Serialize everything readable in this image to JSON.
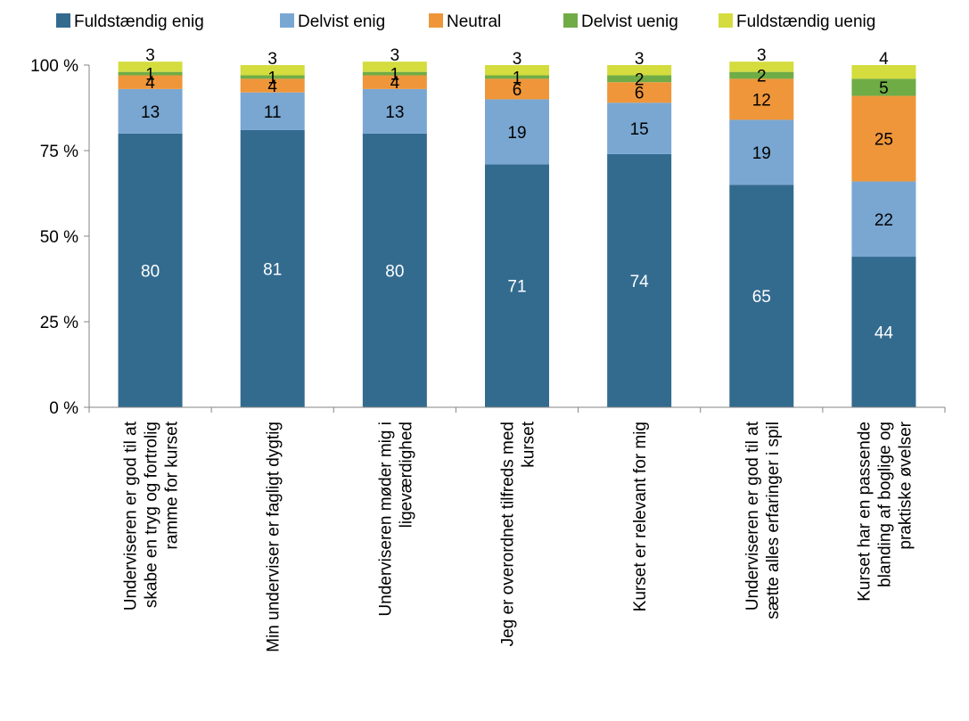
{
  "chart_data": {
    "type": "bar",
    "stacked": true,
    "orientation": "vertical",
    "categories": [
      [
        "Underviseren er god til at",
        "skabe en tryg og fortrolig",
        "ramme for kurset"
      ],
      [
        "Min underviser er fagligt dygtig"
      ],
      [
        "Underviseren møder mig i",
        "ligeværdighed"
      ],
      [
        "Jeg er overordnet tilfreds med",
        "kurset"
      ],
      [
        "Kurset er relevant for mig"
      ],
      [
        "Underviseren er god til at",
        "sætte alles erfaringer i spil"
      ],
      [
        "Kurset har en passende",
        "blanding af boglige og",
        "praktiske øvelser"
      ]
    ],
    "series": [
      {
        "name": "Fuldstændig enig",
        "color": "#336b8f",
        "label_color": "#ffffff",
        "values": [
          80,
          81,
          80,
          71,
          74,
          65,
          44
        ]
      },
      {
        "name": "Delvist enig",
        "color": "#79a7d2",
        "label_color": "#000000",
        "values": [
          13,
          11,
          13,
          19,
          15,
          19,
          22
        ]
      },
      {
        "name": "Neutral",
        "color": "#ef963a",
        "label_color": "#000000",
        "values": [
          4,
          4,
          4,
          6,
          6,
          12,
          25
        ]
      },
      {
        "name": "Delvist uenig",
        "color": "#6fac46",
        "label_color": "#000000",
        "values": [
          1,
          1,
          1,
          1,
          2,
          2,
          5
        ]
      },
      {
        "name": "Fuldstændig uenig",
        "color": "#d4dc3e",
        "label_color": "#000000",
        "values": [
          3,
          3,
          3,
          3,
          3,
          3,
          4
        ]
      }
    ],
    "y_ticks": [
      "0 %",
      "25 %",
      "50 %",
      "75 %",
      "100 %"
    ],
    "ylim": [
      0,
      100
    ],
    "legend_position": "top",
    "grid": false
  }
}
